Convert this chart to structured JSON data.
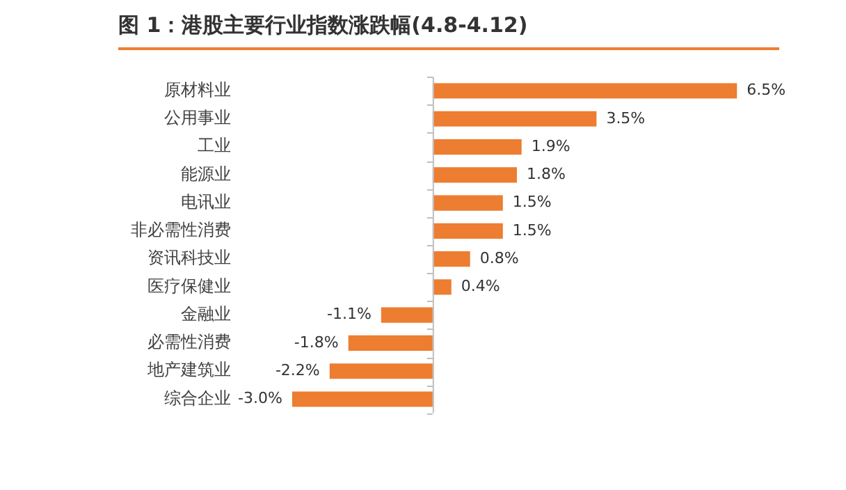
{
  "chart_data": {
    "type": "bar",
    "orientation": "horizontal",
    "title": "图 1：港股主要行业指数涨跌幅(4.8-4.12)",
    "categories": [
      "原材料业",
      "公用事业",
      "工业",
      "能源业",
      "电讯业",
      "非必需性消费",
      "资讯科技业",
      "医疗保健业",
      "金融业",
      "必需性消费",
      "地产建筑业",
      "综合企业"
    ],
    "values": [
      6.5,
      3.5,
      1.9,
      1.8,
      1.5,
      1.5,
      0.8,
      0.4,
      -1.1,
      -1.8,
      -2.2,
      -3.0
    ],
    "value_labels": [
      "6.5%",
      "3.5%",
      "1.9%",
      "1.8%",
      "1.5%",
      "1.5%",
      "0.8%",
      "0.4%",
      "-1.1%",
      "-1.8%",
      "-2.2%",
      "-3.0%"
    ],
    "color": "#ed7d31",
    "legend": false
  }
}
